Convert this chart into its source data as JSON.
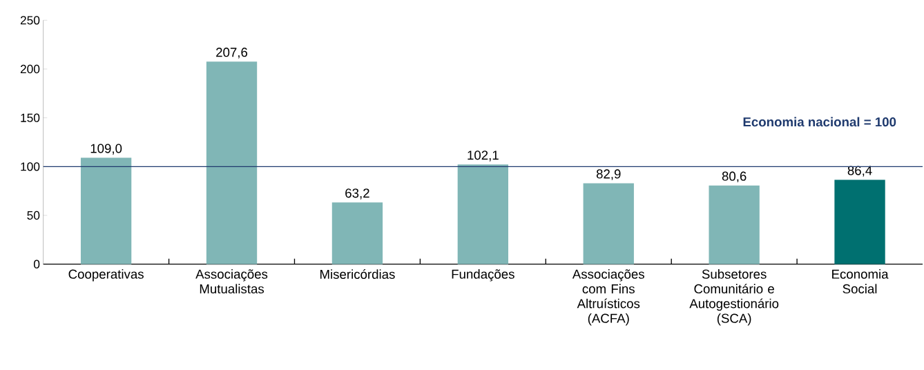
{
  "chart_data": {
    "type": "bar",
    "categories": [
      "Cooperativas",
      "Associações Mutualistas",
      "Misericórdias",
      "Fundações",
      "Associações com Fins Altruísticos (ACFA)",
      "Subsetores Comunitário e Autogestionário (SCA)",
      "Economia Social"
    ],
    "values": [
      109.0,
      207.6,
      63.2,
      102.1,
      82.9,
      80.6,
      86.4
    ],
    "colors": [
      "#80b6b6",
      "#80b6b6",
      "#80b6b6",
      "#80b6b6",
      "#80b6b6",
      "#80b6b6",
      "#007070"
    ],
    "value_labels": [
      "109,0",
      "207,6",
      "63,2",
      "102,1",
      "82,9",
      "80,6",
      "86,4"
    ],
    "ylim": [
      0,
      250
    ],
    "yticks": [
      0,
      50,
      100,
      150,
      200,
      250
    ],
    "ref_lines": [
      {
        "axis": "y",
        "value": 100,
        "label": "Economia  nacional = 100",
        "color": "#1f3a6e"
      }
    ]
  }
}
